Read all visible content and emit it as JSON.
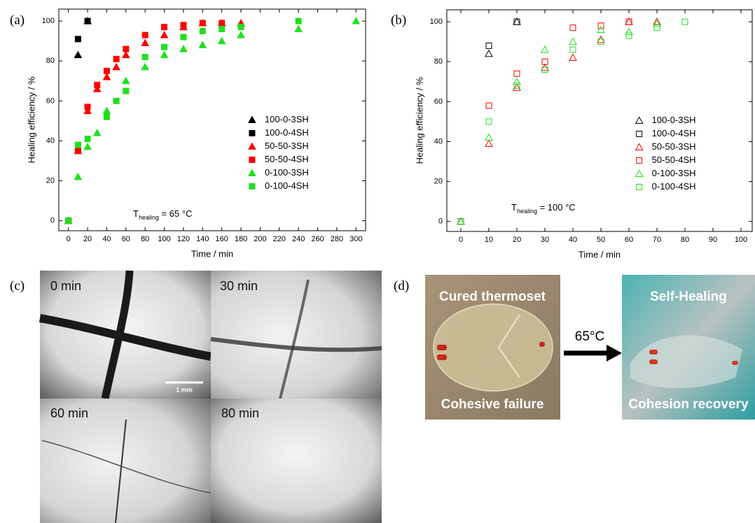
{
  "chart_data": [
    {
      "type": "scatter",
      "panel": "(a)",
      "xlabel": "Time / min",
      "ylabel": "Healing efficiency / %",
      "xlim": [
        -10,
        310
      ],
      "ylim": [
        -5,
        106
      ],
      "xticks": [
        0,
        20,
        40,
        60,
        80,
        100,
        120,
        140,
        160,
        180,
        200,
        220,
        240,
        260,
        280,
        300
      ],
      "yticks": [
        0,
        20,
        40,
        60,
        80,
        100
      ],
      "legend": "center-right",
      "annotation": {
        "main": "T",
        "sub": "healing",
        "rest": " = 65 °C"
      },
      "series": [
        {
          "name": "100-0-3SH",
          "color": "#000000",
          "marker": "triangle",
          "filled": true,
          "x": [
            0,
            10,
            20
          ],
          "values": [
            0,
            83,
            100
          ]
        },
        {
          "name": "100-0-4SH",
          "color": "#000000",
          "marker": "square",
          "filled": true,
          "x": [
            0,
            10,
            20
          ],
          "values": [
            0,
            91,
            100
          ]
        },
        {
          "name": "50-50-3SH",
          "color": "#ff0000",
          "marker": "triangle",
          "filled": true,
          "x": [
            0,
            10,
            20,
            30,
            40,
            50,
            60,
            80,
            100,
            120,
            140,
            160,
            180
          ],
          "values": [
            0,
            35,
            55,
            66,
            72,
            77,
            83,
            89,
            93,
            97,
            99,
            99,
            99
          ]
        },
        {
          "name": "50-50-4SH",
          "color": "#ff0000",
          "marker": "square",
          "filled": true,
          "x": [
            0,
            10,
            20,
            30,
            40,
            50,
            60,
            80,
            100,
            120,
            140,
            160
          ],
          "values": [
            0,
            35,
            57,
            68,
            75,
            81,
            86,
            93,
            97,
            98,
            99,
            99
          ]
        },
        {
          "name": "0-100-3SH",
          "color": "#1ee01e",
          "marker": "triangle",
          "filled": true,
          "x": [
            0,
            10,
            20,
            30,
            40,
            60,
            80,
            100,
            120,
            140,
            160,
            180,
            240,
            300
          ],
          "values": [
            0,
            22,
            37,
            44,
            55,
            70,
            77,
            83,
            86,
            88,
            90,
            93,
            96,
            100
          ]
        },
        {
          "name": "0-100-4SH",
          "color": "#1ee01e",
          "marker": "square",
          "filled": true,
          "x": [
            0,
            10,
            20,
            40,
            50,
            60,
            80,
            100,
            120,
            140,
            160,
            180,
            240
          ],
          "values": [
            0,
            38,
            41,
            52,
            60,
            65,
            82,
            87,
            92,
            95,
            96,
            97,
            100
          ]
        }
      ]
    },
    {
      "type": "scatter",
      "panel": "(b)",
      "xlabel": "Time / min",
      "ylabel": "Healing efficiency / %",
      "xlim": [
        -5,
        104
      ],
      "ylim": [
        -5,
        106
      ],
      "xticks": [
        0,
        10,
        20,
        30,
        40,
        50,
        60,
        70,
        80,
        90,
        100
      ],
      "yticks": [
        0,
        20,
        40,
        60,
        80,
        100
      ],
      "legend": "center-right",
      "annotation": {
        "main": "T",
        "sub": "healing",
        "rest": " = 100 °C"
      },
      "series": [
        {
          "name": "100-0-3SH",
          "color": "#000000",
          "marker": "triangle",
          "filled": false,
          "x": [
            0,
            10,
            20
          ],
          "values": [
            0,
            84,
            100
          ]
        },
        {
          "name": "100-0-4SH",
          "color": "#000000",
          "marker": "square",
          "filled": false,
          "x": [
            0,
            10,
            20
          ],
          "values": [
            0,
            88,
            100
          ]
        },
        {
          "name": "50-50-3SH",
          "color": "#ff0000",
          "marker": "triangle",
          "filled": false,
          "x": [
            0,
            10,
            20,
            30,
            40,
            50,
            60,
            70
          ],
          "values": [
            0,
            39,
            67,
            77,
            82,
            91,
            100,
            100
          ]
        },
        {
          "name": "50-50-4SH",
          "color": "#ff0000",
          "marker": "square",
          "filled": false,
          "x": [
            0,
            10,
            20,
            30,
            40,
            50,
            60
          ],
          "values": [
            0,
            58,
            74,
            80,
            97,
            98,
            100
          ]
        },
        {
          "name": "0-100-3SH",
          "color": "#1ee01e",
          "marker": "triangle",
          "filled": false,
          "x": [
            0,
            10,
            20,
            30,
            40,
            50,
            60,
            70
          ],
          "values": [
            0,
            42,
            70,
            86,
            90,
            96,
            95,
            99
          ]
        },
        {
          "name": "0-100-4SH",
          "color": "#1ee01e",
          "marker": "square",
          "filled": false,
          "x": [
            0,
            10,
            20,
            30,
            40,
            50,
            60,
            70,
            80
          ],
          "values": [
            0,
            50,
            68,
            76,
            86,
            90,
            93,
            97,
            100
          ]
        }
      ]
    }
  ],
  "micrographs": {
    "panel": "(c)",
    "frames": [
      "0 min",
      "30 min",
      "60 min",
      "80 min"
    ],
    "scale_bar": "1 mm"
  },
  "photos": {
    "panel": "(d)",
    "left": {
      "top": "Cured thermoset",
      "bottom": "Cohesive failure"
    },
    "arrow": "65°C",
    "right": {
      "top": "Self-Healing",
      "bottom": "Cohesion recovery"
    }
  }
}
